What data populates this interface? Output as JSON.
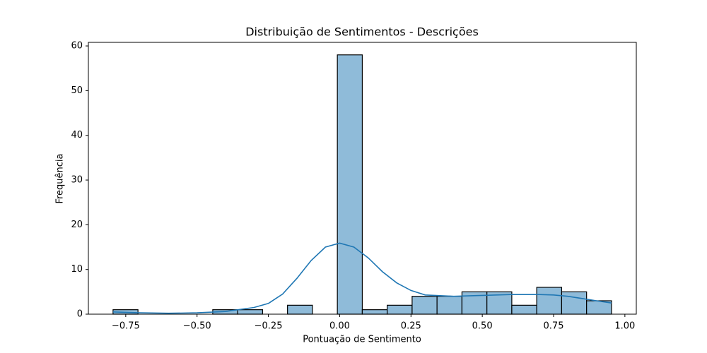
{
  "chart_data": {
    "type": "histogram",
    "title": "Distribuição de Sentimentos - Descrições",
    "x_label": "Pontuação de Sentimento",
    "y_label": "Frequência",
    "bins": [
      -0.7945,
      -0.7071,
      -0.6197,
      -0.5324,
      -0.445,
      -0.3576,
      -0.2702,
      -0.1829,
      -0.0955,
      -0.0081,
      0.0793,
      0.1667,
      0.254,
      0.3414,
      0.4288,
      0.5162,
      0.6035,
      0.6909,
      0.7783,
      0.8657,
      0.9531
    ],
    "values": [
      1,
      0,
      0,
      0,
      1,
      1,
      0,
      2,
      0,
      58,
      1,
      2,
      4,
      4,
      5,
      5,
      2,
      6,
      5,
      3
    ],
    "color": "#8fbbd9",
    "edge_color": "#000000",
    "kde": {
      "color": "#1f77b4",
      "x": [
        -0.7945,
        -0.7,
        -0.6,
        -0.5,
        -0.4,
        -0.3,
        -0.25,
        -0.2,
        -0.15,
        -0.1,
        -0.05,
        0,
        0.05,
        0.1,
        0.15,
        0.2,
        0.25,
        0.3,
        0.4,
        0.5,
        0.6,
        0.7,
        0.75,
        0.8,
        0.85,
        0.9,
        0.9531
      ],
      "values": [
        0.5,
        0.3,
        0.2,
        0.3,
        0.6,
        1.5,
        2.4,
        4.5,
        8,
        12,
        15,
        15.9,
        15,
        12.6,
        9.5,
        7,
        5.3,
        4.3,
        4,
        4.2,
        4.4,
        4.4,
        4.3,
        4,
        3.5,
        3,
        2.5
      ]
    },
    "xlim": [
      -0.881,
      1.04
    ],
    "ylim": [
      0,
      60.8
    ],
    "xticks": [
      {
        "value": -0.75,
        "label": "−0.75"
      },
      {
        "value": -0.5,
        "label": "−0.50"
      },
      {
        "value": -0.25,
        "label": "−0.25"
      },
      {
        "value": 0,
        "label": "0.00"
      },
      {
        "value": 0.25,
        "label": "0.25"
      },
      {
        "value": 0.5,
        "label": "0.50"
      },
      {
        "value": 0.75,
        "label": "0.75"
      },
      {
        "value": 1,
        "label": "1.00"
      }
    ],
    "yticks": [
      0,
      10,
      20,
      30,
      40,
      50,
      60
    ]
  }
}
